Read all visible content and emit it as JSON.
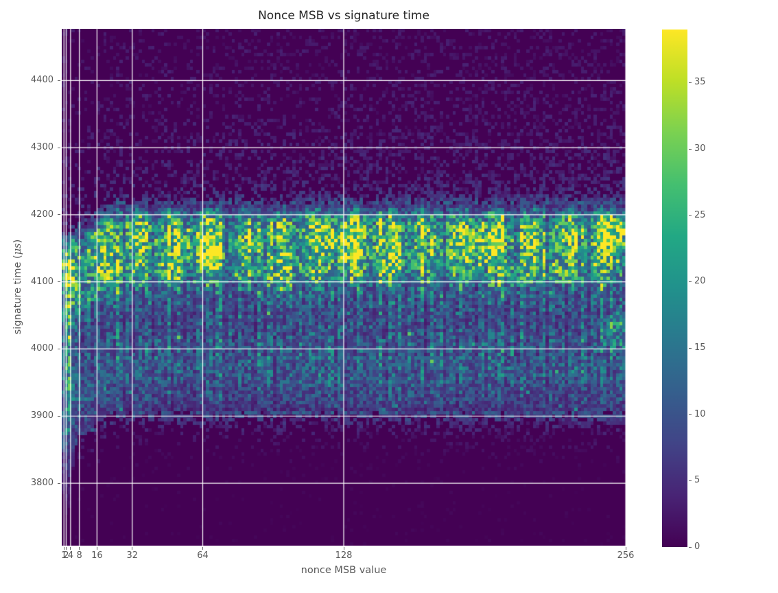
{
  "title": "Nonce MSB vs signature time",
  "x_axis": {
    "label": "nonce MSB value",
    "ticks": [
      1,
      2,
      4,
      8,
      16,
      32,
      64,
      128,
      256
    ],
    "range": [
      0,
      256
    ],
    "scale": "linear"
  },
  "y_axis": {
    "label_parts": [
      "signature time (",
      "μs",
      ")"
    ],
    "ticks": [
      3800,
      3900,
      4000,
      4100,
      4200,
      4300,
      4400
    ],
    "range": [
      3707,
      4477
    ]
  },
  "colorbar": {
    "ticks": [
      0,
      5,
      10,
      15,
      20,
      25,
      30,
      35
    ],
    "vmin": 0,
    "vmax": 39,
    "position": "right"
  },
  "colors": {
    "background": "#ffffff",
    "grid": "#ffffff",
    "title": "#262626",
    "axis_label": "#595959",
    "tick_label": "#595959",
    "tick_mark": "#666666",
    "heatmap_zero": "#440154",
    "heatmap_max": "#fde725"
  },
  "chart_data": {
    "type": "heatmap",
    "title": "Nonce MSB vs signature time",
    "xlabel": "nonce MSB value",
    "ylabel": "signature time (μs)",
    "x_range": [
      0,
      256
    ],
    "y_range": [
      3707,
      4477
    ],
    "x_ticks": [
      1,
      2,
      4,
      8,
      16,
      32,
      64,
      128,
      256
    ],
    "y_ticks": [
      3800,
      3900,
      4000,
      4100,
      4200,
      4300,
      4400
    ],
    "grid": true,
    "legend": "colorbar at right, counts 0-39",
    "colormap": "viridis",
    "colormap_stops": [
      [
        0.0,
        "#440154"
      ],
      [
        0.1,
        "#482475"
      ],
      [
        0.2,
        "#414487"
      ],
      [
        0.3,
        "#355f8d"
      ],
      [
        0.4,
        "#2a788e"
      ],
      [
        0.5,
        "#21918c"
      ],
      [
        0.6,
        "#22a884"
      ],
      [
        0.7,
        "#44bf70"
      ],
      [
        0.8,
        "#7ad151"
      ],
      [
        0.9,
        "#bddf26"
      ],
      [
        1.0,
        "#fde725"
      ]
    ],
    "count_range": [
      0,
      39
    ],
    "bins": {
      "nx": 176,
      "ny": 150
    },
    "seed": 1337,
    "density_profile_time_vs_relative_count": [
      [
        3707,
        0.01
      ],
      [
        3810,
        0.01
      ],
      [
        3840,
        0.02
      ],
      [
        3870,
        0.045
      ],
      [
        3890,
        0.1
      ],
      [
        3910,
        0.22
      ],
      [
        3930,
        0.34
      ],
      [
        3955,
        0.44
      ],
      [
        3980,
        0.46
      ],
      [
        4000,
        0.5
      ],
      [
        4020,
        0.44
      ],
      [
        4045,
        0.4
      ],
      [
        4070,
        0.46
      ],
      [
        4090,
        0.58
      ],
      [
        4110,
        0.72
      ],
      [
        4130,
        0.82
      ],
      [
        4150,
        0.9
      ],
      [
        4170,
        0.93
      ],
      [
        4185,
        0.88
      ],
      [
        4195,
        0.7
      ],
      [
        4205,
        0.42
      ],
      [
        4215,
        0.2
      ],
      [
        4230,
        0.1
      ],
      [
        4260,
        0.075
      ],
      [
        4300,
        0.07
      ],
      [
        4350,
        0.055
      ],
      [
        4400,
        0.05
      ],
      [
        4477,
        0.045
      ]
    ],
    "comb_bands": [
      {
        "t_min": 3988,
        "t_max": 4095,
        "strength": 0.5
      },
      {
        "t_min": 3930,
        "t_max": 3988,
        "strength": 0.35
      },
      {
        "t_min": 4095,
        "t_max": 4200,
        "strength": 0.22
      },
      {
        "t_min": 4200,
        "t_max": 4477,
        "strength": 0.12
      },
      {
        "t_min": 3707,
        "t_max": 3930,
        "strength": 0.2
      }
    ],
    "comb_period_nonce": 4.58,
    "ridge_blob": {
      "t_min": 4085,
      "t_max": 4215,
      "period_nonce": 16.3,
      "amplitude": 0.26
    },
    "hotspots": [
      {
        "nonce": 2.5,
        "time": 3960,
        "sx": 1.8,
        "st": 110,
        "boost": 0.3
      },
      {
        "nonce": 24,
        "time": 4115,
        "sx": 4,
        "st": 25,
        "boost": 0.25
      },
      {
        "nonce": 48,
        "time": 4125,
        "sx": 4,
        "st": 18,
        "boost": 0.2
      },
      {
        "nonce": 64,
        "time": 4148,
        "sx": 5,
        "st": 22,
        "boost": 0.45
      },
      {
        "nonce": 100,
        "time": 4108,
        "sx": 5,
        "st": 20,
        "boost": 0.3
      },
      {
        "nonce": 130,
        "time": 4160,
        "sx": 6,
        "st": 22,
        "boost": 0.5
      },
      {
        "nonce": 148,
        "time": 4128,
        "sx": 5,
        "st": 18,
        "boost": 0.22
      },
      {
        "nonce": 190,
        "time": 4152,
        "sx": 6,
        "st": 20,
        "boost": 0.4
      },
      {
        "nonce": 205,
        "time": 4105,
        "sx": 4,
        "st": 14,
        "boost": 0.22
      },
      {
        "nonce": 222,
        "time": 4120,
        "sx": 5,
        "st": 18,
        "boost": 0.2
      },
      {
        "nonce": 250,
        "time": 4172,
        "sx": 5,
        "st": 18,
        "boost": 0.55
      },
      {
        "nonce": 251,
        "time": 4028,
        "sx": 4,
        "st": 16,
        "boost": 0.35
      }
    ],
    "left_edge_shift": {
      "below_nonce": 24,
      "us_per_unit": 2.2
    },
    "summary": "2D histogram of signature latency vs nonce MSB value (0-256, power-of-two ticks). Near-zero counts below ~3880 us and above ~4230 us (sparse 1-4 count speckles). Dense band 3900-4200 us with vertical comb striping; brightest ridge 4100-4200 us with local maxima near nonce 64, 130, 190, 250 reaching ~35-39 counts. Columns for small nonce MSB (<24) extend ~50 us lower."
  }
}
